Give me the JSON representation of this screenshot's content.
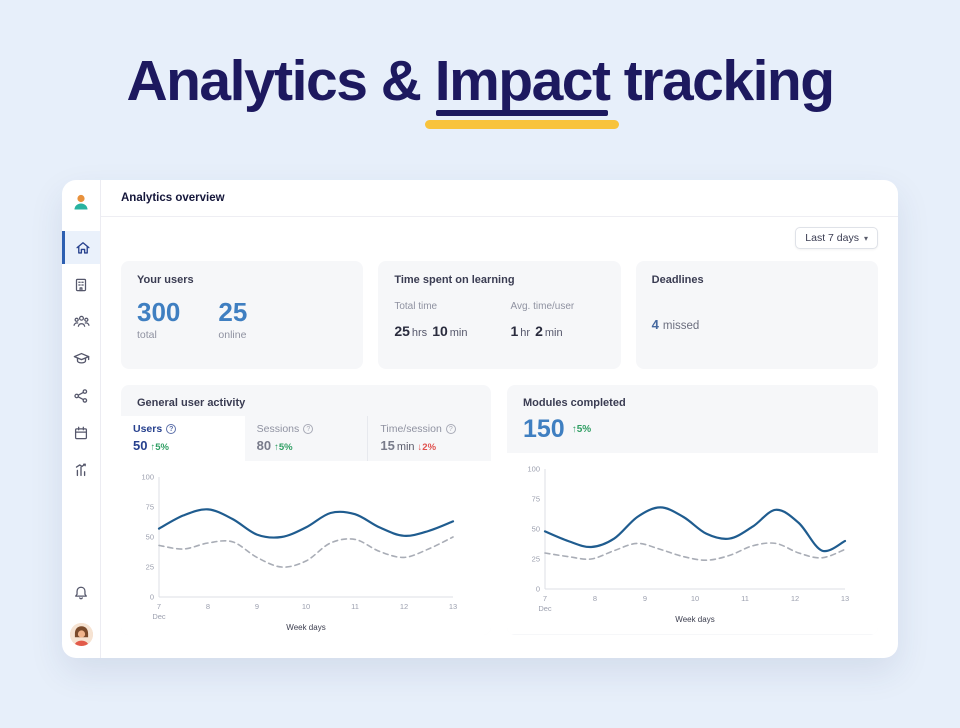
{
  "title": {
    "part1": "Analytics & ",
    "highlight": "Impact",
    "part2": " tracking"
  },
  "colors": {
    "background": "#e7effa",
    "navy": "#1d195f",
    "yellow_marker": "#f8c33c",
    "accent_blue": "#3f7fc1",
    "green_up": "#2f9e63",
    "red_down": "#e0524f",
    "line_blue": "#1f5c8f",
    "line_gray": "#a9adb6"
  },
  "icons": {
    "help": "?",
    "chevron_down": "▾",
    "sidebar": [
      "home",
      "organization",
      "team",
      "courses",
      "share",
      "calendar",
      "stats"
    ],
    "sidebar_bottom": [
      "notifications",
      "profile-avatar"
    ]
  },
  "dashboard": {
    "header": "Analytics overview",
    "period": "Last 7 days",
    "stats": {
      "users": {
        "title": "Your users",
        "total": {
          "value": "300",
          "label": "total"
        },
        "online": {
          "value": "25",
          "label": "online"
        }
      },
      "learning": {
        "title": "Time spent on learning",
        "total": {
          "label": "Total time",
          "v1": "25",
          "u1": "hrs",
          "v2": "10",
          "u2": "min"
        },
        "avg": {
          "label": "Avg. time/user",
          "v1": "1",
          "u1": "hr",
          "v2": "2",
          "u2": "min"
        }
      },
      "deadlines": {
        "title": "Deadlines",
        "value": "4",
        "label": "missed"
      }
    },
    "activity": {
      "title": "General user activity",
      "tabs": [
        {
          "label": "Users",
          "value": "50",
          "unit": "",
          "delta": "↑5%",
          "dir": "up"
        },
        {
          "label": "Sessions",
          "value": "80",
          "unit": "",
          "delta": "↑5%",
          "dir": "up"
        },
        {
          "label": "Time/session",
          "value": "15",
          "unit": "min",
          "delta": "↓2%",
          "dir": "down"
        }
      ]
    },
    "modules": {
      "title": "Modules completed",
      "value": "150",
      "delta": "↑5%"
    }
  },
  "chart_data": [
    {
      "type": "line",
      "title": "General user activity",
      "x": [
        "7",
        "8",
        "9",
        "10",
        "11",
        "12",
        "13"
      ],
      "x_first_sub": "Dec",
      "x_label": "Week days",
      "y_ticks": [
        "100",
        "75",
        "50",
        "25",
        "0"
      ],
      "ylim": [
        0,
        100
      ],
      "series": [
        {
          "name": "current",
          "style": "solid",
          "values": [
            57,
            68,
            73,
            65,
            52,
            50,
            58,
            70,
            69,
            58,
            51,
            55,
            63
          ]
        },
        {
          "name": "previous",
          "style": "dashed",
          "values": [
            43,
            40,
            45,
            46,
            33,
            25,
            30,
            45,
            48,
            38,
            33,
            40,
            50
          ]
        }
      ]
    },
    {
      "type": "line",
      "title": "Modules completed",
      "x": [
        "7",
        "8",
        "9",
        "10",
        "11",
        "12",
        "13"
      ],
      "x_first_sub": "Dec",
      "x_label": "Week days",
      "y_ticks": [
        "100",
        "75",
        "50",
        "25",
        "0"
      ],
      "ylim": [
        0,
        100
      ],
      "series": [
        {
          "name": "current",
          "style": "solid",
          "values": [
            48,
            40,
            35,
            42,
            60,
            68,
            60,
            46,
            42,
            52,
            66,
            55,
            32,
            40
          ]
        },
        {
          "name": "previous",
          "style": "dashed",
          "values": [
            30,
            27,
            25,
            32,
            38,
            33,
            27,
            24,
            28,
            36,
            38,
            30,
            26,
            33
          ]
        }
      ]
    }
  ]
}
